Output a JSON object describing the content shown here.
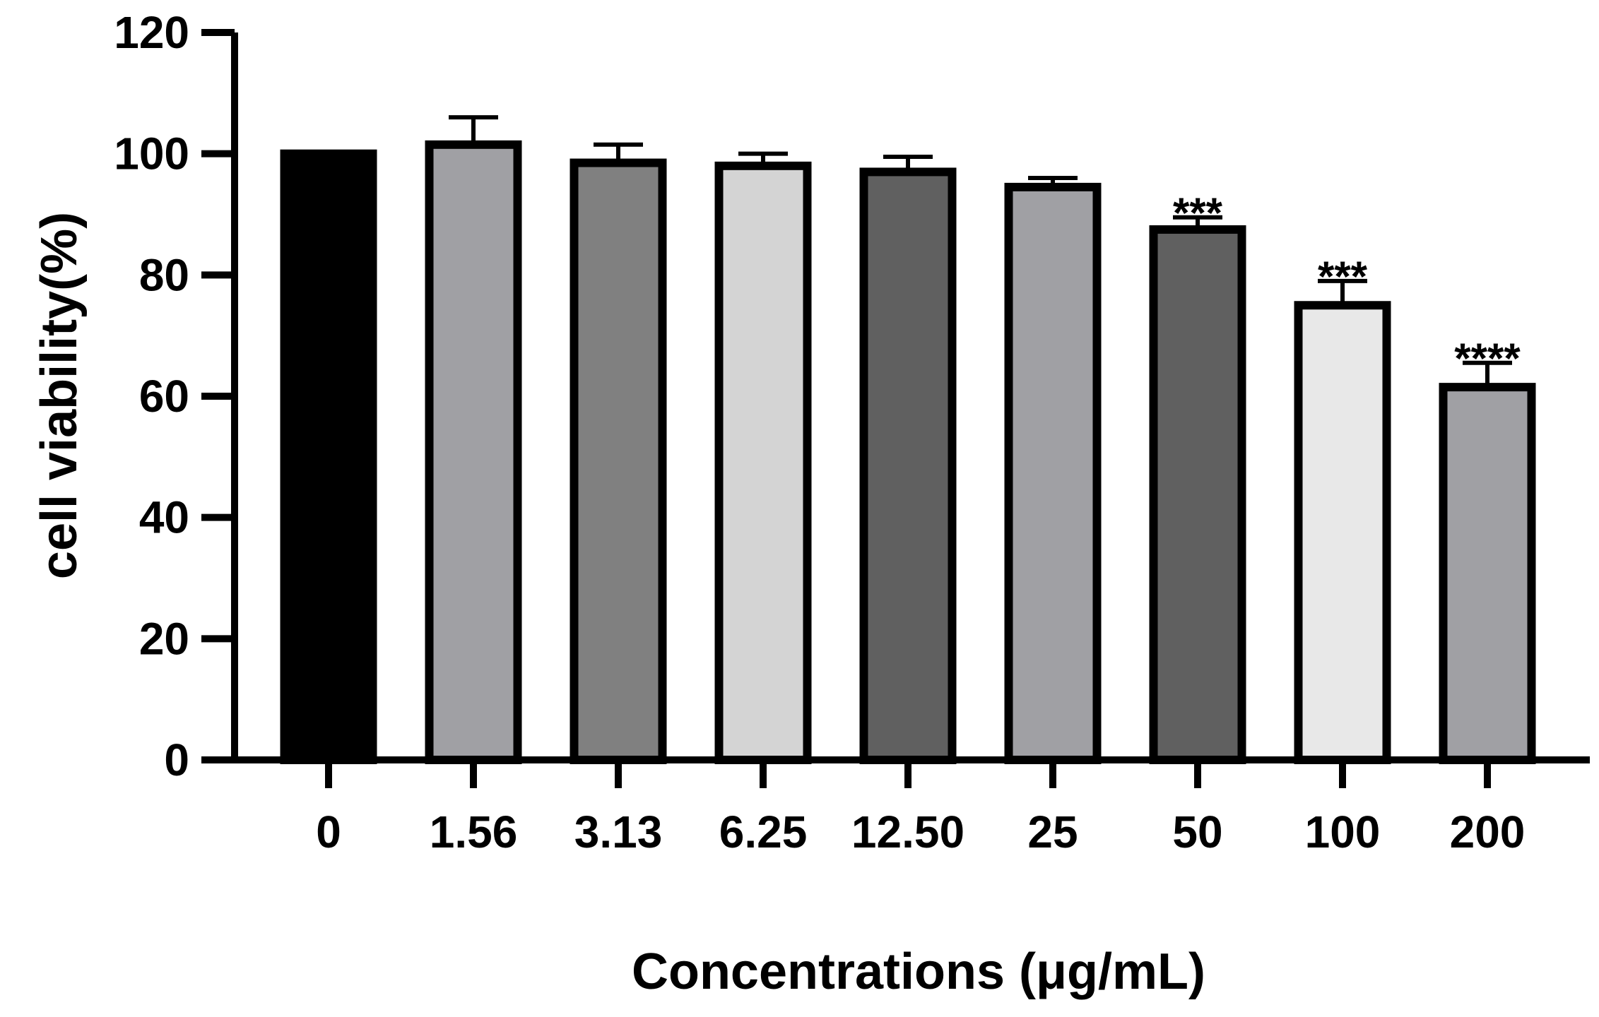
{
  "chart_data": {
    "type": "bar",
    "title": "",
    "xlabel": "Concentrations (μg/mL)",
    "ylabel": "cell viability(%)",
    "ylim": [
      0,
      120
    ],
    "yticks": [
      0,
      20,
      40,
      60,
      80,
      100,
      120
    ],
    "grid": false,
    "legend": "none",
    "categories": [
      "0",
      "1.56",
      "3.13",
      "6.25",
      "12.50",
      "25",
      "50",
      "100",
      "200"
    ],
    "values": [
      100,
      101.5,
      98.5,
      98,
      97,
      94.5,
      87.5,
      75,
      61.5
    ],
    "errors": [
      0,
      4.5,
      3,
      2,
      2.5,
      1.5,
      2,
      4,
      4
    ],
    "significance": [
      "",
      "",
      "",
      "",
      "",
      "",
      "***",
      "***",
      "****"
    ],
    "colors": [
      "#000000",
      "#a0a0a4",
      "#808080",
      "#d4d4d4",
      "#606060",
      "#a0a0a4",
      "#606060",
      "#e8e8e8",
      "#a0a0a4"
    ]
  }
}
